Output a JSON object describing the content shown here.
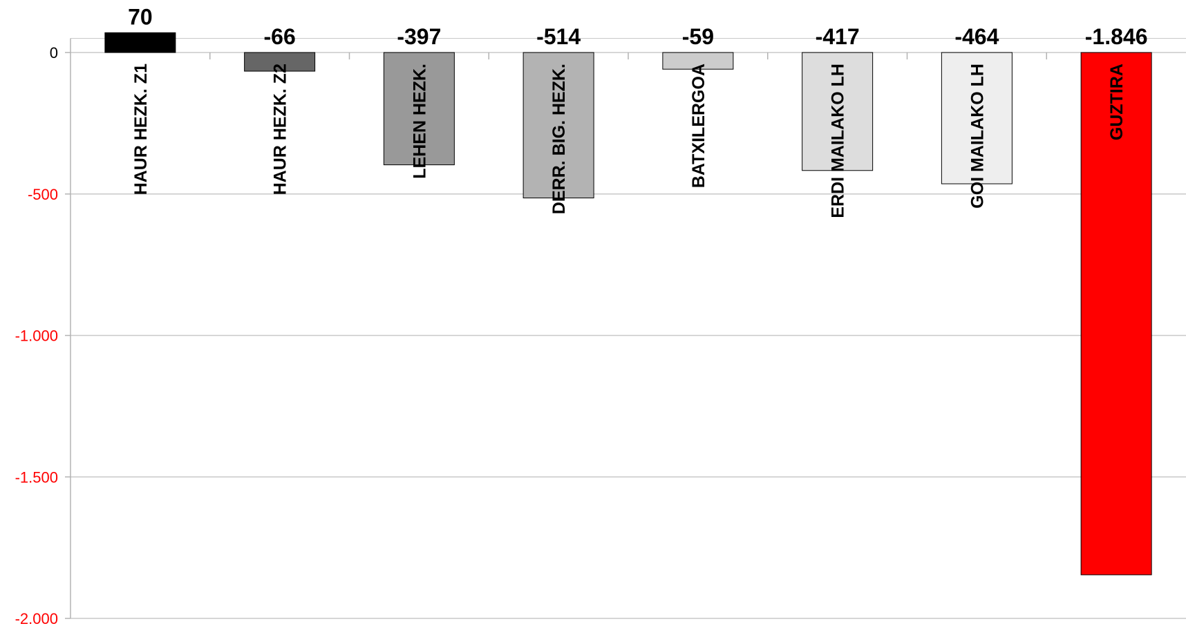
{
  "chart_data": {
    "type": "bar",
    "title": "",
    "xlabel": "",
    "ylabel": "",
    "ylim": [
      -2000,
      50
    ],
    "yticks": [
      0,
      -500,
      -1000,
      -1500,
      -2000
    ],
    "ytick_labels": [
      "0",
      "-500",
      "-1.000",
      "-1.500",
      "-2.000"
    ],
    "ytick_color": "#ff0000",
    "grid": true,
    "categories": [
      "HAUR HEZK. Z1",
      "HAUR HEZK. Z2",
      "LEHEN HEZK.",
      "DERR. BIG. HEZK.",
      "BATXILERGOA",
      "ERDI MAILAKO LH",
      "GOI MAILAKO LH",
      "GUZTIRA"
    ],
    "values": [
      70,
      -66,
      -397,
      -514,
      -59,
      -417,
      -464,
      -1846
    ],
    "value_labels": [
      "70",
      "-66",
      "-397",
      "-514",
      "-59",
      "-417",
      "-464",
      "-1.846"
    ],
    "colors": [
      "#000000",
      "#666666",
      "#999999",
      "#b3b3b3",
      "#cccccc",
      "#dddddd",
      "#eeeeee",
      "#ff0000"
    ]
  }
}
